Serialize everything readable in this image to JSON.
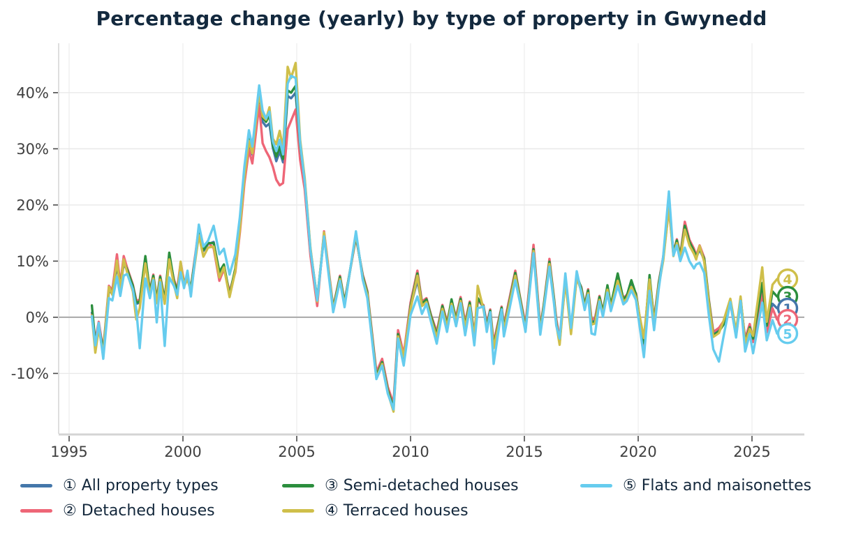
{
  "title": "Percentage change (yearly) by type of property in Gwynedd",
  "chart_data": {
    "type": "line",
    "title": "Percentage change (yearly) by type of property in Gwynedd",
    "grid": true,
    "legend_position": "bottom",
    "x_axis": {
      "ticks": [
        1995,
        2000,
        2005,
        2010,
        2015,
        2020,
        2025
      ],
      "range": [
        1994.54,
        2027.3
      ]
    },
    "y_axis": {
      "unit": "%",
      "range": [
        -20.75,
        48.8
      ],
      "ticks": [
        {
          "value": 40,
          "label": "40%"
        },
        {
          "value": 30,
          "label": "30%"
        },
        {
          "value": 20,
          "label": "20%"
        },
        {
          "value": 10,
          "label": "10%"
        },
        {
          "value": 0,
          "label": "0%"
        },
        {
          "value": -10,
          "label": "-10%"
        }
      ]
    },
    "series": [
      {
        "number": "1",
        "name": "All property types",
        "legend_label": "① All property types",
        "color": "#4477AA",
        "last_value": 1.6
      },
      {
        "number": "2",
        "name": "Detached houses",
        "legend_label": "② Detached houses",
        "color": "#EE6677",
        "last_value": -0.4
      },
      {
        "number": "3",
        "name": "Semi-detached houses",
        "legend_label": "③ Semi-detached houses",
        "color": "#2B8E3D",
        "last_value": 3.7
      },
      {
        "number": "4",
        "name": "Terraced houses",
        "legend_label": "④ Terraced houses",
        "color": "#CFBF4A",
        "last_value": 6.8
      },
      {
        "number": "5",
        "name": "Flats and maisonettes",
        "legend_label": "⑤ Flats and maisonettes",
        "color": "#66CCEE",
        "last_value": -2.9
      }
    ],
    "columns": [
      "year",
      "all_property_types",
      "detached_houses",
      "semi_detached_houses",
      "terraced_houses",
      "flats_and_maisonettes"
    ],
    "rows": [
      [
        1996.0,
        0.8,
        0.5,
        2.1,
        0.3,
        0.2
      ],
      [
        1996.15,
        -4.5,
        -4.0,
        -4.6,
        -6.3,
        -5.0
      ],
      [
        1996.3,
        -1.2,
        -0.8,
        -1.5,
        -2.0,
        -1.0
      ],
      [
        1996.5,
        -6.2,
        -5.8,
        -6.0,
        -6.6,
        -7.4
      ],
      [
        1996.75,
        4.8,
        5.6,
        5.0,
        5.4,
        3.4
      ],
      [
        1996.9,
        4.2,
        4.8,
        4.4,
        4.0,
        3.0
      ],
      [
        1997.1,
        9.2,
        11.2,
        9.6,
        10.1,
        7.2
      ],
      [
        1997.25,
        5.2,
        5.8,
        5.4,
        4.8,
        3.8
      ],
      [
        1997.4,
        9.6,
        10.9,
        9.9,
        10.3,
        7.4
      ],
      [
        1997.55,
        8.3,
        8.8,
        8.5,
        8.0,
        7.7
      ],
      [
        1997.8,
        5.3,
        5.8,
        5.6,
        4.6,
        5.0
      ],
      [
        1997.95,
        2.4,
        3.0,
        2.6,
        -0.4,
        1.4
      ],
      [
        1998.1,
        2.6,
        3.1,
        2.8,
        1.6,
        -5.5
      ],
      [
        1998.35,
        9.8,
        10.4,
        10.9,
        9.6,
        6.9
      ],
      [
        1998.55,
        4.3,
        4.8,
        4.5,
        3.9,
        3.4
      ],
      [
        1998.7,
        7.2,
        7.6,
        7.4,
        6.9,
        6.6
      ],
      [
        1998.85,
        2.9,
        3.3,
        3.1,
        2.5,
        -0.9
      ],
      [
        1999.0,
        7.0,
        7.4,
        7.2,
        6.7,
        6.2
      ],
      [
        1999.2,
        2.8,
        3.2,
        3.0,
        2.4,
        -5.1
      ],
      [
        1999.4,
        10.2,
        10.8,
        11.5,
        10.3,
        7.1
      ],
      [
        1999.6,
        6.3,
        6.8,
        6.5,
        5.9,
        5.6
      ],
      [
        1999.75,
        4.4,
        4.9,
        4.6,
        3.4,
        4.0
      ],
      [
        1999.9,
        9.3,
        9.8,
        9.1,
        9.9,
        8.0
      ],
      [
        2000.05,
        5.9,
        6.3,
        6.1,
        5.5,
        5.2
      ],
      [
        2000.2,
        7.2,
        7.0,
        7.3,
        6.8,
        8.3
      ],
      [
        2000.35,
        4.9,
        5.3,
        5.1,
        4.6,
        3.7
      ],
      [
        2000.7,
        15.6,
        15.9,
        15.4,
        14.6,
        16.5
      ],
      [
        2000.9,
        11.8,
        12.3,
        12.0,
        10.8,
        12.6
      ],
      [
        2001.1,
        13.0,
        13.3,
        13.2,
        12.4,
        13.6
      ],
      [
        2001.35,
        13.4,
        12.3,
        13.2,
        12.6,
        16.3
      ],
      [
        2001.6,
        7.8,
        6.5,
        8.1,
        7.1,
        11.2
      ],
      [
        2001.8,
        9.0,
        8.6,
        9.4,
        8.9,
        12.2
      ],
      [
        2002.05,
        4.3,
        4.6,
        3.9,
        3.6,
        7.6
      ],
      [
        2002.3,
        8.4,
        8.0,
        8.7,
        8.2,
        11.2
      ],
      [
        2002.5,
        15.8,
        15.0,
        16.2,
        15.6,
        17.8
      ],
      [
        2002.7,
        25.0,
        23.8,
        25.4,
        24.8,
        26.8
      ],
      [
        2002.9,
        31.0,
        29.8,
        32.0,
        31.4,
        33.3
      ],
      [
        2003.05,
        29.0,
        27.4,
        29.6,
        29.2,
        30.4
      ],
      [
        2003.35,
        38.6,
        37.8,
        40.3,
        40.0,
        41.3
      ],
      [
        2003.5,
        34.8,
        31.0,
        35.6,
        35.8,
        36.8
      ],
      [
        2003.65,
        34.0,
        29.6,
        34.8,
        35.2,
        35.4
      ],
      [
        2003.8,
        34.5,
        28.5,
        36.0,
        37.4,
        36.6
      ],
      [
        2003.95,
        30.2,
        26.8,
        30.6,
        31.8,
        31.3
      ],
      [
        2004.1,
        27.8,
        24.5,
        28.6,
        30.8,
        29.6
      ],
      [
        2004.25,
        29.5,
        23.5,
        30.4,
        33.2,
        31.6
      ],
      [
        2004.4,
        27.6,
        23.9,
        28.2,
        30.0,
        29.0
      ],
      [
        2004.6,
        39.4,
        33.5,
        40.4,
        44.6,
        41.6
      ],
      [
        2004.75,
        39.0,
        35.0,
        40.0,
        42.6,
        43.0
      ],
      [
        2004.95,
        40.0,
        37.0,
        41.2,
        45.3,
        42.6
      ],
      [
        2005.15,
        29.8,
        28.0,
        30.6,
        31.6,
        31.0
      ],
      [
        2005.35,
        24.0,
        22.8,
        24.4,
        24.8,
        24.2
      ],
      [
        2005.6,
        11.8,
        11.0,
        12.1,
        12.4,
        12.0
      ],
      [
        2005.9,
        2.8,
        2.0,
        3.2,
        2.8,
        3.0
      ],
      [
        2006.2,
        14.7,
        15.3,
        14.6,
        15.1,
        14.4
      ],
      [
        2006.6,
        1.5,
        1.8,
        1.6,
        1.3,
        0.9
      ],
      [
        2006.9,
        7.0,
        7.4,
        7.2,
        6.8,
        6.5
      ],
      [
        2007.1,
        2.4,
        2.8,
        2.6,
        2.1,
        1.8
      ],
      [
        2007.6,
        14.6,
        14.2,
        14.5,
        14.9,
        15.3
      ],
      [
        2007.9,
        7.2,
        7.6,
        7.3,
        6.9,
        6.7
      ],
      [
        2008.1,
        4.3,
        4.7,
        4.4,
        4.0,
        3.4
      ],
      [
        2008.5,
        -10.2,
        -9.8,
        -10.4,
        -10.8,
        -11.0
      ],
      [
        2008.75,
        -7.8,
        -7.4,
        -8.0,
        -8.3,
        -8.6
      ],
      [
        2009.0,
        -12.8,
        -12.4,
        -13.0,
        -13.4,
        -13.6
      ],
      [
        2009.25,
        -15.8,
        -15.4,
        -16.1,
        -16.8,
        -16.4
      ],
      [
        2009.45,
        -2.8,
        -2.3,
        -3.0,
        -3.4,
        -3.8
      ],
      [
        2009.7,
        -7.2,
        -6.6,
        -7.4,
        -7.0,
        -8.6
      ],
      [
        2010.0,
        1.8,
        2.6,
        2.0,
        1.5,
        0.4
      ],
      [
        2010.3,
        6.6,
        8.3,
        7.8,
        7.4,
        3.7
      ],
      [
        2010.5,
        2.2,
        2.8,
        2.4,
        2.0,
        0.6
      ],
      [
        2010.7,
        3.0,
        3.4,
        3.2,
        2.7,
        2.4
      ],
      [
        2010.9,
        0.0,
        0.4,
        0.2,
        -0.4,
        -0.8
      ],
      [
        2011.15,
        -3.0,
        -2.6,
        -3.2,
        -3.6,
        -4.7
      ],
      [
        2011.4,
        1.8,
        2.2,
        2.0,
        1.5,
        1.0
      ],
      [
        2011.6,
        -1.2,
        -0.8,
        -1.4,
        -1.7,
        -2.6
      ],
      [
        2011.8,
        2.8,
        2.6,
        3.2,
        2.4,
        2.0
      ],
      [
        2012.0,
        -0.3,
        0.1,
        -0.5,
        -0.8,
        -1.6
      ],
      [
        2012.2,
        3.2,
        3.6,
        3.3,
        2.9,
        2.5
      ],
      [
        2012.4,
        -1.3,
        -0.9,
        -1.5,
        -1.8,
        -3.2
      ],
      [
        2012.6,
        2.4,
        2.8,
        2.6,
        2.1,
        1.7
      ],
      [
        2012.8,
        -3.4,
        -3.0,
        -3.6,
        -3.9,
        -5.0
      ],
      [
        2012.95,
        3.2,
        2.9,
        3.4,
        5.6,
        1.6
      ],
      [
        2013.2,
        1.8,
        2.2,
        2.0,
        1.5,
        1.9
      ],
      [
        2013.35,
        -1.5,
        -1.1,
        -1.7,
        -2.0,
        -2.6
      ],
      [
        2013.5,
        1.0,
        1.4,
        1.2,
        0.7,
        0.9
      ],
      [
        2013.65,
        -5.0,
        -4.5,
        -5.2,
        -5.5,
        -8.3
      ],
      [
        2014.0,
        1.5,
        1.9,
        1.7,
        1.2,
        1.4
      ],
      [
        2014.1,
        -1.8,
        -1.4,
        -2.0,
        -2.3,
        -3.4
      ],
      [
        2014.6,
        7.6,
        8.3,
        7.9,
        7.4,
        6.6
      ],
      [
        2014.8,
        3.4,
        3.8,
        3.6,
        3.1,
        2.8
      ],
      [
        2015.05,
        -1.8,
        -1.4,
        -2.0,
        -2.3,
        -2.6
      ],
      [
        2015.4,
        12.3,
        12.9,
        12.1,
        11.8,
        11.4
      ],
      [
        2015.7,
        -2.1,
        -1.7,
        -2.3,
        -2.6,
        -3.1
      ],
      [
        2015.85,
        1.8,
        2.2,
        2.0,
        1.5,
        1.2
      ],
      [
        2016.1,
        9.8,
        10.4,
        9.9,
        9.5,
        9.0
      ],
      [
        2016.3,
        3.1,
        3.5,
        3.3,
        2.8,
        2.5
      ],
      [
        2016.4,
        -0.7,
        -0.3,
        -0.9,
        -1.2,
        -1.5
      ],
      [
        2016.55,
        -4.3,
        -3.9,
        -4.6,
        -4.9,
        -3.8
      ],
      [
        2016.8,
        6.7,
        6.4,
        7.1,
        6.5,
        7.8
      ],
      [
        2017.05,
        -2.2,
        -1.8,
        -2.4,
        -3.0,
        -1.9
      ],
      [
        2017.3,
        7.3,
        7.0,
        7.5,
        7.1,
        8.2
      ],
      [
        2017.5,
        5.0,
        5.4,
        5.2,
        4.7,
        4.4
      ],
      [
        2017.65,
        1.9,
        2.3,
        2.1,
        1.6,
        1.3
      ],
      [
        2017.8,
        4.6,
        5.0,
        4.8,
        4.3,
        4.0
      ],
      [
        2017.95,
        -0.8,
        -0.4,
        -1.0,
        -1.3,
        -2.9
      ],
      [
        2018.1,
        -0.6,
        -0.2,
        -0.8,
        -1.1,
        -3.1
      ],
      [
        2018.3,
        3.4,
        3.8,
        3.6,
        3.1,
        2.8
      ],
      [
        2018.45,
        0.7,
        1.1,
        0.9,
        0.4,
        0.1
      ],
      [
        2018.65,
        5.1,
        4.8,
        5.7,
        4.9,
        4.4
      ],
      [
        2018.8,
        1.9,
        2.3,
        2.1,
        1.6,
        1.1
      ],
      [
        2019.1,
        6.9,
        6.8,
        7.8,
        6.5,
        5.6
      ],
      [
        2019.35,
        3.0,
        3.4,
        3.2,
        2.7,
        2.3
      ],
      [
        2019.5,
        3.6,
        4.0,
        3.8,
        3.3,
        2.9
      ],
      [
        2019.7,
        5.6,
        5.3,
        6.6,
        5.4,
        4.8
      ],
      [
        2019.9,
        3.9,
        4.3,
        4.1,
        3.6,
        3.1
      ],
      [
        2020.25,
        -4.4,
        -5.0,
        -4.6,
        -3.7,
        -7.1
      ],
      [
        2020.5,
        6.9,
        6.6,
        7.5,
        6.7,
        4.7
      ],
      [
        2020.7,
        -0.7,
        -0.3,
        -0.9,
        -1.2,
        -2.3
      ],
      [
        2020.9,
        5.8,
        6.2,
        6.0,
        5.5,
        5.0
      ],
      [
        2021.1,
        10.4,
        10.8,
        10.6,
        10.1,
        10.9
      ],
      [
        2021.35,
        19.8,
        19.2,
        20.2,
        19.5,
        22.4
      ],
      [
        2021.55,
        11.2,
        11.6,
        11.4,
        10.9,
        11.0
      ],
      [
        2021.7,
        13.5,
        13.9,
        13.7,
        13.2,
        12.8
      ],
      [
        2021.85,
        10.7,
        11.1,
        10.9,
        10.4,
        10.0
      ],
      [
        2022.05,
        16.0,
        17.0,
        16.3,
        15.6,
        12.4
      ],
      [
        2022.25,
        13.2,
        13.8,
        13.4,
        12.8,
        10.0
      ],
      [
        2022.45,
        11.6,
        12.2,
        11.8,
        11.3,
        8.7
      ],
      [
        2022.55,
        10.6,
        11.0,
        10.8,
        10.3,
        9.4
      ],
      [
        2022.7,
        12.1,
        12.8,
        12.3,
        12.7,
        9.7
      ],
      [
        2022.9,
        10.2,
        10.6,
        10.4,
        9.9,
        7.9
      ],
      [
        2023.1,
        2.9,
        3.3,
        3.1,
        2.6,
        0.5
      ],
      [
        2023.3,
        -3.0,
        -2.6,
        -3.2,
        -3.5,
        -5.7
      ],
      [
        2023.55,
        -2.3,
        -1.9,
        -2.5,
        -2.8,
        -7.9
      ],
      [
        2023.75,
        -1.1,
        -0.7,
        -1.3,
        -0.6,
        -3.4
      ],
      [
        2024.05,
        2.9,
        2.5,
        3.0,
        3.3,
        2.7
      ],
      [
        2024.3,
        -2.8,
        -3.3,
        -3.0,
        -2.5,
        -3.6
      ],
      [
        2024.5,
        3.2,
        2.8,
        3.4,
        3.7,
        2.9
      ],
      [
        2024.7,
        -4.2,
        -3.8,
        -4.4,
        -4.7,
        -6.1
      ],
      [
        2024.9,
        -1.6,
        -1.2,
        -1.8,
        -2.1,
        -3.0
      ],
      [
        2025.05,
        -3.6,
        -4.4,
        -3.8,
        -3.3,
        -6.4
      ],
      [
        2025.45,
        4.2,
        4.6,
        6.1,
        8.9,
        2.6
      ],
      [
        2025.65,
        -1.8,
        -2.7,
        -1.5,
        -0.8,
        -4.1
      ],
      [
        2025.9,
        2.4,
        1.6,
        4.6,
        5.8,
        -0.5
      ],
      [
        2026.1,
        1.6,
        -0.4,
        3.7,
        6.8,
        -2.9
      ]
    ]
  }
}
